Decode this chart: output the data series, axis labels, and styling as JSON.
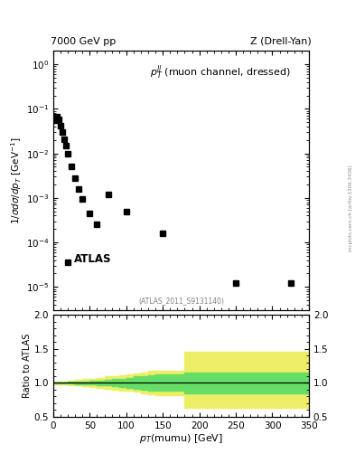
{
  "title_left": "7000 GeV pp",
  "title_right": "Z (Drell-Yan)",
  "annotation": "$p_T^{ll}$ (muon channel, dressed)",
  "atlas_label": "ATLAS",
  "ref_label": "(ATLAS_2011_S9131140)",
  "watermark": "mcplots.cern.ch [arXiv:1306.3436]",
  "ylabel_main": "$1/\\sigma d\\sigma/dp_T$ [GeV$^{-1}$]",
  "ylabel_ratio": "Ratio to ATLAS",
  "xlabel": "$p_T$(mumu) [GeV]",
  "xlim": [
    0,
    350
  ],
  "ylim_main": [
    3e-06,
    2.0
  ],
  "ylim_ratio": [
    0.5,
    2.0
  ],
  "data_x": [
    2.5,
    5.0,
    7.5,
    10.0,
    12.5,
    15.0,
    17.5,
    20.0,
    25.0,
    30.0,
    35.0,
    40.0,
    50.0,
    60.0,
    75.0,
    100.0,
    150.0,
    250.0,
    325.0
  ],
  "data_y": [
    0.055,
    0.068,
    0.058,
    0.042,
    0.03,
    0.021,
    0.015,
    0.01,
    0.0052,
    0.0028,
    0.0016,
    0.00095,
    0.00045,
    0.00025,
    0.0012,
    0.0005,
    0.00016,
    1.2e-05,
    1.2e-05
  ],
  "ratio_x": [
    0,
    10,
    20,
    30,
    40,
    50,
    60,
    70,
    80,
    90,
    100,
    110,
    120,
    130,
    140,
    150,
    160,
    170,
    180,
    190,
    200,
    350
  ],
  "ratio_green_hi": [
    1.01,
    1.01,
    1.015,
    1.02,
    1.02,
    1.025,
    1.03,
    1.04,
    1.05,
    1.06,
    1.07,
    1.09,
    1.1,
    1.11,
    1.12,
    1.12,
    1.12,
    1.12,
    1.15,
    1.15,
    1.15,
    1.15
  ],
  "ratio_green_lo": [
    0.99,
    0.99,
    0.985,
    0.98,
    0.98,
    0.975,
    0.97,
    0.96,
    0.95,
    0.94,
    0.93,
    0.91,
    0.9,
    0.89,
    0.88,
    0.88,
    0.88,
    0.88,
    0.85,
    0.85,
    0.85,
    0.85
  ],
  "ratio_yellow_hi": [
    1.02,
    1.02,
    1.03,
    1.04,
    1.05,
    1.06,
    1.07,
    1.09,
    1.1,
    1.11,
    1.12,
    1.13,
    1.15,
    1.17,
    1.18,
    1.18,
    1.18,
    1.18,
    1.45,
    1.45,
    1.45,
    1.45
  ],
  "ratio_yellow_lo": [
    0.98,
    0.98,
    0.97,
    0.96,
    0.95,
    0.94,
    0.93,
    0.91,
    0.9,
    0.89,
    0.88,
    0.87,
    0.85,
    0.83,
    0.82,
    0.82,
    0.82,
    0.82,
    0.63,
    0.63,
    0.63,
    0.63
  ],
  "marker_color": "#000000",
  "marker_size": 4,
  "green_color": "#66dd66",
  "yellow_color": "#eeee66",
  "ratio_line_y": 1.0,
  "bg_color": "#ffffff"
}
